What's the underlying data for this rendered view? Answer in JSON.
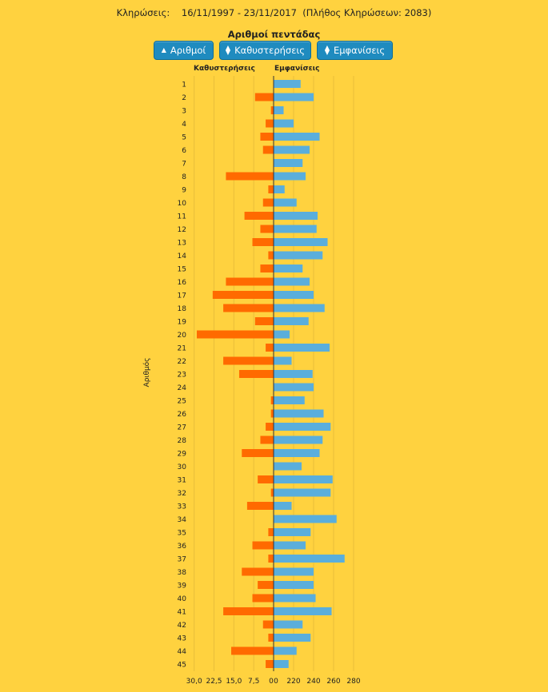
{
  "header": {
    "label": "Κληρώσεις:",
    "date_range": "16/11/1997 - 23/11/2017",
    "draws_count": "(Πλήθος Κληρώσεων: 2083)"
  },
  "title": "Αριθμοί πεντάδας",
  "buttons": {
    "numbers": "Αριθμοί",
    "delays": "Καθυστερήσεις",
    "appearances": "Εμφανίσεις"
  },
  "colors": {
    "background": "#FFD23F",
    "delays": "#FF6A00",
    "appearances": "#5AAEDC",
    "button": "#1F8BBF"
  },
  "chart_data": {
    "type": "bar",
    "orientation": "horizontal",
    "ylabel": "Αριθμός",
    "left_title": "Καθυστερήσεις",
    "right_title": "Εμφανίσεις",
    "left_ticks": [
      "30,0",
      "22,5",
      "15,0",
      "7,5",
      "0"
    ],
    "right_ticks": [
      "0",
      "220",
      "240",
      "260",
      "280"
    ],
    "categories": [
      "1",
      "2",
      "3",
      "4",
      "5",
      "6",
      "7",
      "8",
      "9",
      "10",
      "11",
      "12",
      "13",
      "14",
      "15",
      "16",
      "17",
      "18",
      "19",
      "20",
      "21",
      "22",
      "23",
      "24",
      "25",
      "26",
      "27",
      "28",
      "29",
      "30",
      "31",
      "32",
      "33",
      "34",
      "35",
      "36",
      "37",
      "38",
      "39",
      "40",
      "41",
      "42",
      "43",
      "44",
      "45"
    ],
    "series": [
      {
        "name": "Καθυστερήσεις",
        "values": [
          0,
          7,
          1,
          3,
          5,
          4,
          0,
          18,
          2,
          4,
          11,
          5,
          8,
          2,
          5,
          18,
          23,
          19,
          7,
          29,
          3,
          19,
          13,
          0,
          1,
          1,
          3,
          5,
          12,
          0,
          6,
          1,
          10,
          0,
          2,
          8,
          2,
          12,
          6,
          8,
          19,
          4,
          2,
          16,
          3
        ]
      },
      {
        "name": "Εμφανίσεις",
        "values": [
          227,
          240,
          210,
          220,
          246,
          236,
          229,
          232,
          211,
          223,
          244,
          243,
          254,
          249,
          229,
          236,
          240,
          251,
          235,
          216,
          256,
          218,
          239,
          240,
          231,
          250,
          257,
          249,
          246,
          228,
          259,
          257,
          218,
          263,
          237,
          232,
          271,
          240,
          240,
          242,
          258,
          229,
          237,
          223,
          215
        ]
      }
    ]
  }
}
